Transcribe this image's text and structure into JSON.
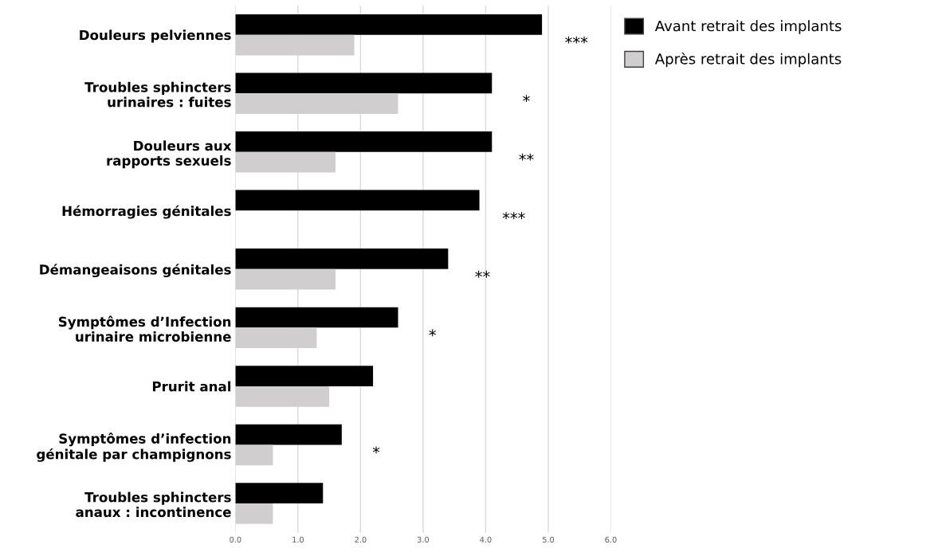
{
  "chart_data": {
    "type": "bar",
    "orientation": "horizontal",
    "categories": [
      "Douleurs pelviennes",
      "Troubles sphincters\nurinaires : fuites",
      "Douleurs aux\nrapports sexuels",
      "Hémorragies génitales",
      "Démangeaisons génitales",
      "Symptômes d’Infection\nurinaire microbienne",
      "Prurit anal",
      "Symptômes d’infection\ngénitale par champignons",
      "Troubles sphincters\nanaux : incontinence"
    ],
    "series": [
      {
        "name": "Avant retrait des implants",
        "color": "#000000",
        "values": [
          4.9,
          4.1,
          4.1,
          3.9,
          3.4,
          2.6,
          2.2,
          1.7,
          1.4
        ]
      },
      {
        "name": "Après retrait des implants",
        "color": "#d0cece",
        "values": [
          1.9,
          2.6,
          1.6,
          null,
          1.6,
          1.3,
          1.5,
          0.6,
          0.6
        ]
      }
    ],
    "xlim": [
      0,
      6
    ],
    "xticks": [
      {
        "value": 0,
        "label": "0.0"
      },
      {
        "value": 1,
        "label": "1.0"
      },
      {
        "value": 2,
        "label": "2.0"
      },
      {
        "value": 3,
        "label": "3.0"
      },
      {
        "value": 4,
        "label": "4.0"
      },
      {
        "value": 5,
        "label": "5.0"
      },
      {
        "value": 6,
        "label": "6.0"
      }
    ],
    "grid": "x",
    "legend": "top right",
    "annotations": [
      "***",
      "*",
      "**",
      "***",
      "**",
      "*",
      "*"
    ]
  }
}
